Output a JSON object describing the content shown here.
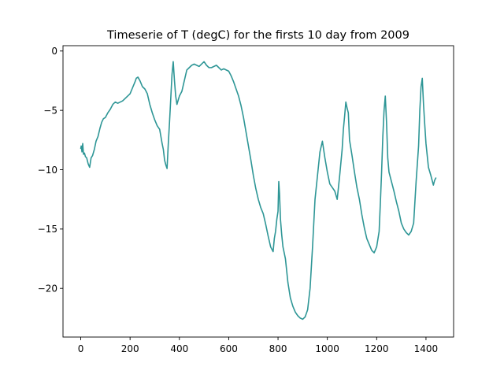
{
  "chart_data": {
    "type": "line",
    "title": "Timeserie of T (degC) for the firsts 10 day from 2009",
    "xlabel": "",
    "ylabel": "",
    "xlim": [
      -72,
      1512
    ],
    "ylim": [
      -24.1,
      0.45
    ],
    "x_ticks": [
      0,
      200,
      400,
      600,
      800,
      1000,
      1200,
      1400
    ],
    "x_tick_labels": [
      "0",
      "200",
      "400",
      "600",
      "800",
      "1000",
      "1200",
      "1400"
    ],
    "y_ticks": [
      0,
      -5,
      -10,
      -15,
      -20
    ],
    "y_tick_labels": [
      "0",
      "−5",
      "−10",
      "−15",
      "−20"
    ],
    "grid": false,
    "legend": "none",
    "line_color": "#2e9696",
    "series": [
      {
        "x": [
          0,
          2,
          5,
          8,
          11,
          15,
          19,
          24,
          30,
          36,
          42,
          48,
          55,
          62,
          70,
          78,
          85,
          92,
          100,
          110,
          120,
          130,
          140,
          150,
          160,
          170,
          180,
          190,
          200,
          210,
          220,
          225,
          232,
          240,
          250,
          260,
          270,
          280,
          290,
          300,
          310,
          320,
          330,
          335,
          340,
          345,
          350,
          355,
          360,
          365,
          370,
          375,
          380,
          385,
          390,
          400,
          410,
          420,
          430,
          440,
          450,
          460,
          470,
          480,
          490,
          500,
          510,
          520,
          530,
          540,
          550,
          560,
          570,
          580,
          590,
          600,
          610,
          620,
          630,
          640,
          650,
          660,
          670,
          680,
          690,
          700,
          710,
          720,
          730,
          740,
          750,
          760,
          770,
          780,
          785,
          790,
          795,
          800,
          803,
          806,
          810,
          815,
          820,
          830,
          840,
          850,
          860,
          870,
          880,
          890,
          900,
          910,
          920,
          930,
          940,
          950,
          960,
          970,
          980,
          990,
          1000,
          1010,
          1020,
          1030,
          1040,
          1050,
          1060,
          1065,
          1070,
          1075,
          1080,
          1085,
          1090,
          1100,
          1110,
          1120,
          1130,
          1140,
          1150,
          1160,
          1170,
          1180,
          1190,
          1200,
          1210,
          1215,
          1220,
          1225,
          1230,
          1235,
          1240,
          1245,
          1250,
          1260,
          1270,
          1280,
          1290,
          1300,
          1310,
          1320,
          1330,
          1340,
          1350,
          1360,
          1370,
          1375,
          1380,
          1385,
          1390,
          1395,
          1400,
          1410,
          1420,
          1430,
          1435,
          1440
        ],
        "y": [
          -8.2,
          -8.0,
          -8.5,
          -7.8,
          -8.7,
          -8.6,
          -8.9,
          -9.0,
          -9.5,
          -9.8,
          -9.0,
          -8.8,
          -8.3,
          -7.6,
          -7.2,
          -6.5,
          -6.0,
          -5.7,
          -5.6,
          -5.2,
          -4.9,
          -4.5,
          -4.3,
          -4.4,
          -4.3,
          -4.2,
          -4.0,
          -3.8,
          -3.6,
          -3.1,
          -2.6,
          -2.3,
          -2.2,
          -2.5,
          -3.0,
          -3.2,
          -3.6,
          -4.5,
          -5.2,
          -5.8,
          -6.3,
          -6.6,
          -7.8,
          -8.3,
          -9.2,
          -9.6,
          -9.9,
          -7.8,
          -6.0,
          -4.0,
          -2.0,
          -0.9,
          -2.5,
          -3.8,
          -4.5,
          -3.8,
          -3.4,
          -2.5,
          -1.6,
          -1.4,
          -1.2,
          -1.1,
          -1.2,
          -1.3,
          -1.1,
          -0.9,
          -1.2,
          -1.4,
          -1.4,
          -1.3,
          -1.2,
          -1.4,
          -1.6,
          -1.5,
          -1.6,
          -1.7,
          -2.1,
          -2.6,
          -3.2,
          -3.8,
          -4.6,
          -5.6,
          -6.8,
          -8.0,
          -9.2,
          -10.5,
          -11.6,
          -12.5,
          -13.2,
          -13.7,
          -14.6,
          -15.6,
          -16.5,
          -16.9,
          -15.8,
          -15.2,
          -14.2,
          -13.5,
          -11.0,
          -12.0,
          -14.2,
          -15.5,
          -16.5,
          -17.5,
          -19.5,
          -20.8,
          -21.5,
          -22.0,
          -22.3,
          -22.5,
          -22.6,
          -22.4,
          -21.8,
          -20.0,
          -16.5,
          -12.5,
          -10.5,
          -8.5,
          -7.6,
          -9.0,
          -10.2,
          -11.2,
          -11.5,
          -11.8,
          -12.5,
          -10.5,
          -8.3,
          -6.6,
          -5.5,
          -4.3,
          -4.8,
          -5.2,
          -7.5,
          -8.8,
          -10.2,
          -11.5,
          -12.5,
          -13.8,
          -14.9,
          -15.8,
          -16.3,
          -16.8,
          -17.0,
          -16.5,
          -15.2,
          -12.8,
          -10.2,
          -7.2,
          -5.0,
          -3.8,
          -6.0,
          -9.0,
          -10.2,
          -11.0,
          -11.8,
          -12.7,
          -13.5,
          -14.5,
          -15.0,
          -15.3,
          -15.5,
          -15.2,
          -14.5,
          -11.0,
          -8.0,
          -5.0,
          -3.0,
          -2.3,
          -4.5,
          -6.2,
          -7.8,
          -9.8,
          -10.5,
          -11.3,
          -10.9,
          -10.7
        ]
      }
    ]
  }
}
